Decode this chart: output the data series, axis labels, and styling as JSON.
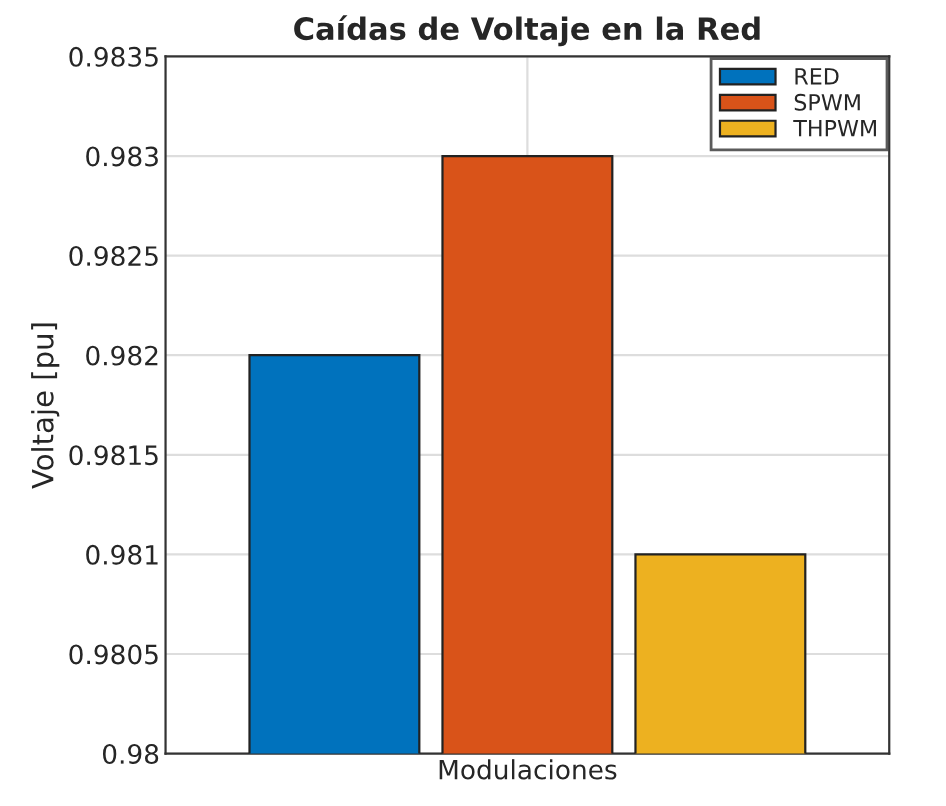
{
  "chart_data": {
    "type": "bar",
    "title": "Caídas de Voltaje en la Red",
    "ylabel": "Voltaje [pu]",
    "categories": [
      "Modulaciones"
    ],
    "series": [
      {
        "name": "RED",
        "color": "#0072bd",
        "values": [
          0.982
        ]
      },
      {
        "name": "SPWM",
        "color": "#d95319",
        "values": [
          0.983
        ]
      },
      {
        "name": "THPWM",
        "color": "#edb120",
        "values": [
          0.981
        ]
      }
    ],
    "ylim": [
      0.98,
      0.9835
    ],
    "yticks": [
      0.98,
      0.9805,
      0.981,
      0.9815,
      0.982,
      0.9825,
      0.983,
      0.9835
    ],
    "grid": true,
    "legend": "top right"
  }
}
